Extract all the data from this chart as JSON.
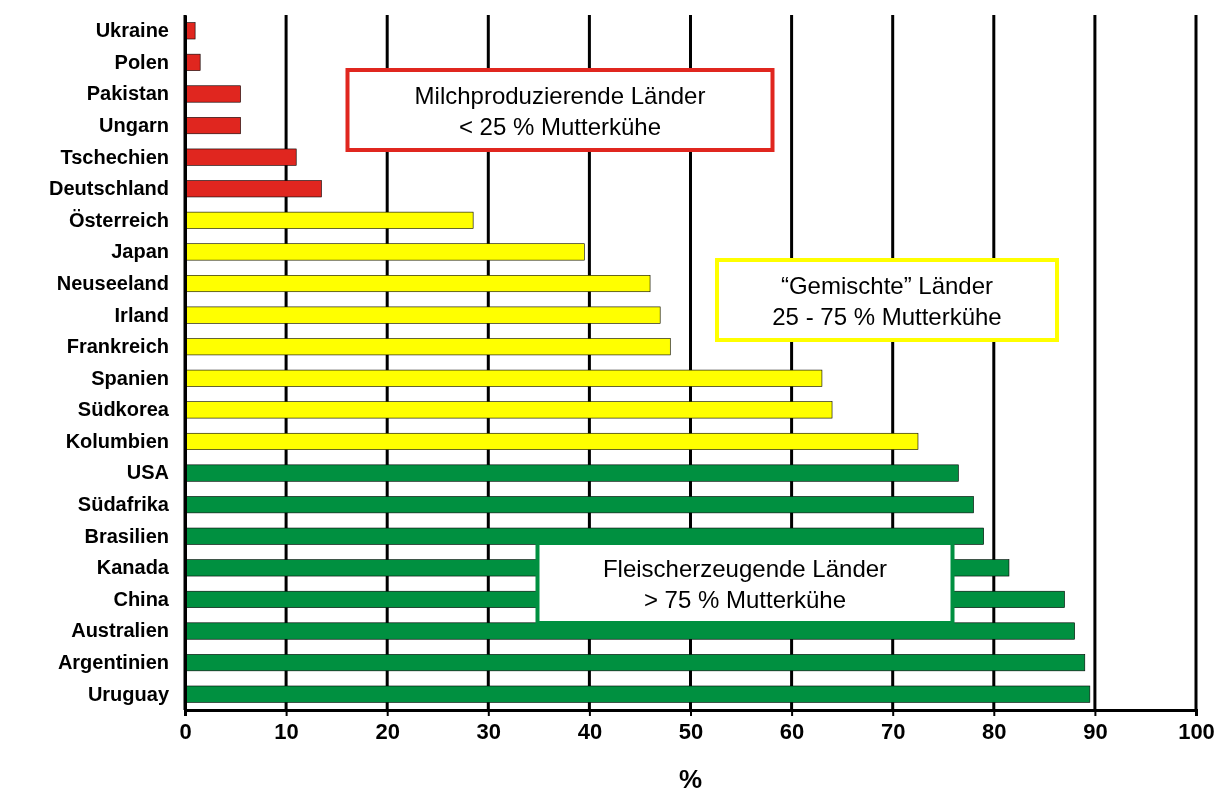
{
  "chart_data": {
    "type": "bar",
    "orientation": "horizontal",
    "xlabel": "%",
    "categories": [
      "Ukraine",
      "Polen",
      "Pakistan",
      "Ungarn",
      "Tschechien",
      "Deutschland",
      "Österreich",
      "Japan",
      "Neuseeland",
      "Irland",
      "Frankreich",
      "Spanien",
      "Südkorea",
      "Kolumbien",
      "USA",
      "Südafrika",
      "Brasilien",
      "Kanada",
      "China",
      "Australien",
      "Argentinien",
      "Uruguay"
    ],
    "values": [
      1,
      1.5,
      5.5,
      5.5,
      11,
      13.5,
      28.5,
      39.5,
      46,
      47,
      48,
      63,
      64,
      72.5,
      76.5,
      78,
      79,
      81.5,
      87,
      88,
      89,
      89.5
    ],
    "colors": [
      "#e0261f",
      "#e0261f",
      "#e0261f",
      "#e0261f",
      "#e0261f",
      "#e0261f",
      "#ffff00",
      "#ffff00",
      "#ffff00",
      "#ffff00",
      "#ffff00",
      "#ffff00",
      "#ffff00",
      "#ffff00",
      "#009040",
      "#009040",
      "#009040",
      "#009040",
      "#009040",
      "#009040",
      "#009040",
      "#009040"
    ],
    "xlim": [
      0,
      100
    ],
    "xticks": [
      0,
      10,
      20,
      30,
      40,
      50,
      60,
      70,
      80,
      90,
      100
    ],
    "grid": "x",
    "annotations": [
      "Milchproduzierende Länder\n< 25 % Mutterkühe",
      "“Gemischte” Länder\n25 - 75 % Mutterkühe",
      "Fleischerzeugende Länder\n> 75 % Mutterkühe"
    ]
  }
}
